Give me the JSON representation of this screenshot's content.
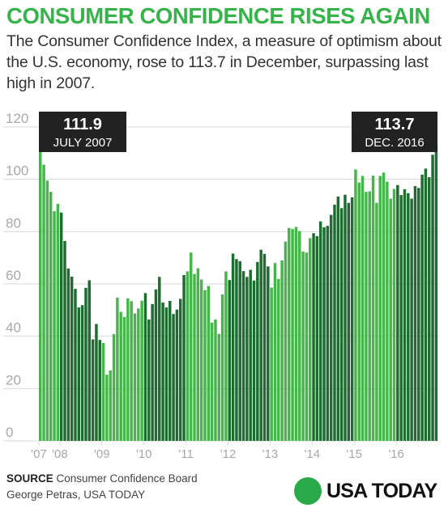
{
  "header": {
    "title": "CONSUMER CONFIDENCE RISES AGAIN",
    "subtitle": "The Consumer Confidence Index, a measure of optimism about the U.S. economy, rose to 113.7 in December, surpassing last high in 2007."
  },
  "footer": {
    "source_label": "SOURCE",
    "source_text": "Consumer Confidence Board",
    "credit": "George Petras, USA TODAY",
    "logo_text": "USA TODAY"
  },
  "colors": {
    "title": "#36b34a",
    "bar_light": "#45b649",
    "bar_dark": "#1d6c30",
    "gridline": "#d8d8d8",
    "callout_bg": "#222222",
    "logo_dot": "#2aa94a"
  },
  "chart_data": {
    "type": "bar",
    "ylim": [
      0,
      120
    ],
    "yticks": [
      "0",
      "20",
      "40",
      "60",
      "80",
      "100",
      "120"
    ],
    "grid": true,
    "xticks": [
      "'07",
      "'08",
      "'09",
      "'10",
      "'11",
      "'12",
      "'13",
      "'14",
      "'15",
      "'16"
    ],
    "start": "2007-07",
    "end": "2016-12",
    "series": [
      {
        "color": "#45b649",
        "values": [
          111.9,
          105.6,
          99.5,
          95.2,
          87.8,
          90.6
        ],
        "note": "2007 Jul–Dec"
      },
      {
        "color": "#1d6c30",
        "values": [
          87.3,
          76.4,
          65.9,
          62.8,
          58.1,
          51.0,
          51.9,
          58.5,
          61.4,
          38.8,
          44.7,
          38.6
        ],
        "note": "2008"
      },
      {
        "color": "#45b649",
        "values": [
          37.4,
          25.3,
          26.9,
          40.8,
          54.8,
          49.3,
          47.4,
          54.5,
          53.4,
          48.7,
          50.6,
          53.6
        ],
        "note": "2009"
      },
      {
        "color": "#1d6c30",
        "values": [
          56.5,
          46.4,
          52.3,
          57.9,
          62.7,
          52.9,
          51.0,
          53.5,
          48.5,
          50.2,
          54.3,
          63.4
        ],
        "note": "2010"
      },
      {
        "color": "#45b649",
        "values": [
          64.8,
          72.0,
          63.8,
          66.0,
          61.7,
          57.6,
          59.2,
          45.2,
          46.4,
          40.9,
          56.0,
          64.8
        ],
        "note": "2011"
      },
      {
        "color": "#1d6c30",
        "values": [
          61.5,
          71.6,
          69.5,
          68.7,
          64.9,
          62.7,
          65.4,
          61.3,
          68.4,
          73.1,
          71.5,
          66.7
        ],
        "note": "2012"
      },
      {
        "color": "#45b649",
        "values": [
          58.6,
          68.0,
          61.9,
          69.0,
          76.2,
          81.4,
          81.0,
          81.8,
          80.2,
          72.4,
          72.0,
          77.5
        ],
        "note": "2013"
      },
      {
        "color": "#1d6c30",
        "values": [
          79.4,
          78.3,
          83.9,
          81.7,
          82.2,
          86.4,
          90.3,
          93.4,
          89.0,
          94.1,
          91.0,
          93.1
        ],
        "note": "2014"
      },
      {
        "color": "#45b649",
        "values": [
          103.8,
          98.8,
          101.3,
          95.2,
          95.4,
          101.4,
          91.0,
          101.3,
          102.6,
          99.1,
          92.6,
          96.3
        ],
        "note": "2015"
      },
      {
        "color": "#1d6c30",
        "values": [
          97.8,
          94.0,
          96.2,
          94.7,
          92.6,
          97.4,
          96.7,
          101.8,
          104.1,
          100.8,
          109.4,
          113.7
        ],
        "note": "2016"
      }
    ],
    "annotations": [
      {
        "value": "111.9",
        "label": "JULY 2007"
      },
      {
        "value": "113.7",
        "label": "DEC. 2016"
      }
    ]
  }
}
